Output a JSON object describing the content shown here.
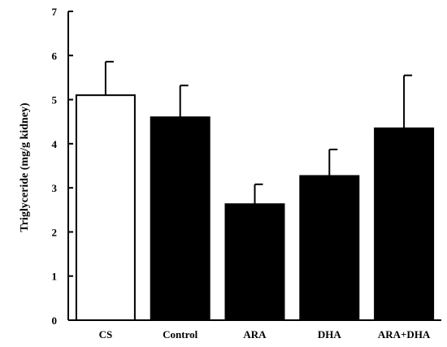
{
  "chart_data": {
    "type": "bar",
    "title": "",
    "xlabel": "",
    "ylabel": "Triglyceride (mg/g kidney)",
    "ylim": [
      0,
      7
    ],
    "yticks": [
      0,
      1,
      2,
      3,
      4,
      5,
      6,
      7
    ],
    "categories": [
      "CS",
      "Control",
      "ARA",
      "DHA",
      "ARA+DHA"
    ],
    "values": [
      5.1,
      4.6,
      2.63,
      3.27,
      4.35
    ],
    "errors": [
      0.76,
      0.72,
      0.45,
      0.6,
      1.2
    ],
    "bar_colors": [
      "#ffffff",
      "#000000",
      "#000000",
      "#000000",
      "#000000"
    ],
    "bar_edge_color": "#000000",
    "grid": false,
    "legend": "none"
  }
}
